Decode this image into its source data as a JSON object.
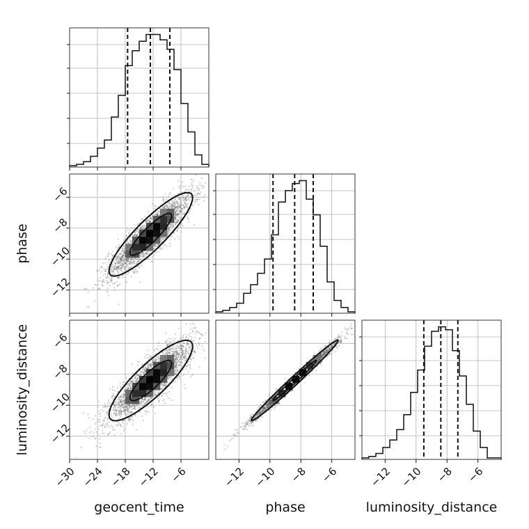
{
  "chart_data": {
    "type": "corner",
    "parameters": [
      "geocent_time",
      "phase",
      "luminosity_distance"
    ],
    "axis_labels": [
      "geocent_time",
      "phase",
      "luminosity_distance"
    ],
    "ranges": [
      [
        -30,
        0
      ],
      [
        -13.5,
        -4.5
      ],
      [
        -13.5,
        -4.5
      ]
    ],
    "ticks": [
      [
        -30,
        -24,
        -18,
        -12,
        -6
      ],
      [
        -12,
        -10,
        -8,
        -6
      ],
      [
        -12,
        -10,
        -8,
        -6
      ]
    ],
    "grid": true,
    "histograms": [
      {
        "parameter": "geocent_time",
        "bin_edges": [
          -30,
          -28.5,
          -27,
          -25.5,
          -24,
          -22.5,
          -21,
          -19.5,
          -18,
          -16.5,
          -15,
          -13.5,
          -12,
          -10.5,
          -9,
          -7.5,
          -6,
          -4.5,
          -3,
          -1.5,
          0
        ],
        "counts": [
          1,
          2,
          4,
          8,
          14,
          20,
          37,
          53,
          75,
          86,
          93,
          98,
          98,
          94,
          87,
          72,
          47,
          26,
          9,
          2
        ],
        "quantiles": [
          -17.5,
          -12.6,
          -8.4
        ]
      },
      {
        "parameter": "phase",
        "bin_edges": [
          -13.5,
          -13.05,
          -12.6,
          -12.15,
          -11.7,
          -11.25,
          -10.8,
          -10.35,
          -9.9,
          -9.45,
          -9.0,
          -8.55,
          -8.1,
          -7.65,
          -7.2,
          -6.75,
          -6.3,
          -5.85,
          -5.4,
          -4.95,
          -4.5
        ],
        "counts": [
          1,
          2,
          4,
          7,
          14,
          20,
          28,
          38,
          55,
          78,
          86,
          91,
          93,
          80,
          69,
          47,
          22,
          9,
          4,
          1
        ],
        "quantiles": [
          -9.8,
          -8.4,
          -7.2
        ]
      },
      {
        "parameter": "luminosity_distance",
        "bin_edges": [
          -13.5,
          -13.05,
          -12.6,
          -12.15,
          -11.7,
          -11.25,
          -10.8,
          -10.35,
          -9.9,
          -9.45,
          -9.0,
          -8.55,
          -8.1,
          -7.65,
          -7.2,
          -6.75,
          -6.3,
          -5.85,
          -5.4,
          -4.95,
          -4.5
        ],
        "counts": [
          1,
          2,
          4,
          8,
          13,
          20,
          30,
          45,
          60,
          76,
          86,
          89,
          87,
          73,
          56,
          37,
          19,
          8,
          1,
          1
        ],
        "quantiles": [
          -9.5,
          -8.4,
          -7.3
        ]
      }
    ],
    "pairs": [
      {
        "x": "geocent_time",
        "y": "phase",
        "center": [
          -12.5,
          -8.4
        ],
        "sigma": [
          4.5,
          1.35
        ],
        "correlation": 0.88
      },
      {
        "x": "geocent_time",
        "y": "luminosity_distance",
        "center": [
          -12.5,
          -8.4
        ],
        "sigma": [
          4.5,
          1.3
        ],
        "correlation": 0.85
      },
      {
        "x": "phase",
        "y": "luminosity_distance",
        "center": [
          -8.4,
          -8.4
        ],
        "sigma": [
          1.4,
          1.3
        ],
        "correlation": 0.99
      }
    ],
    "contour_levels": [
      0.393,
      0.865
    ]
  }
}
